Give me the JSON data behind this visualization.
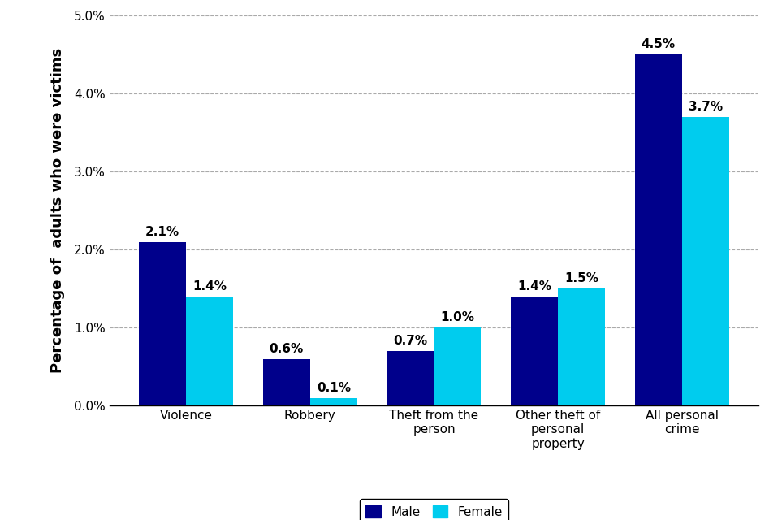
{
  "categories": [
    "Violence",
    "Robbery",
    "Theft from the\nperson",
    "Other theft of\npersonal\nproperty",
    "All personal\ncrime"
  ],
  "male_values": [
    2.1,
    0.6,
    0.7,
    1.4,
    4.5
  ],
  "female_values": [
    1.4,
    0.1,
    1.0,
    1.5,
    3.7
  ],
  "male_color": "#00008B",
  "female_color": "#00CCEE",
  "ylabel": "Percentage of  adults who were victims",
  "ylim": [
    0,
    5.0
  ],
  "yticks": [
    0.0,
    1.0,
    2.0,
    3.0,
    4.0,
    5.0
  ],
  "bar_width": 0.38,
  "legend_labels": [
    "Male",
    "Female"
  ],
  "background_color": "#FFFFFF",
  "grid_color": "#AAAAAA",
  "label_fontsize": 11,
  "ylabel_fontsize": 13,
  "tick_fontsize": 11,
  "legend_fontsize": 11
}
